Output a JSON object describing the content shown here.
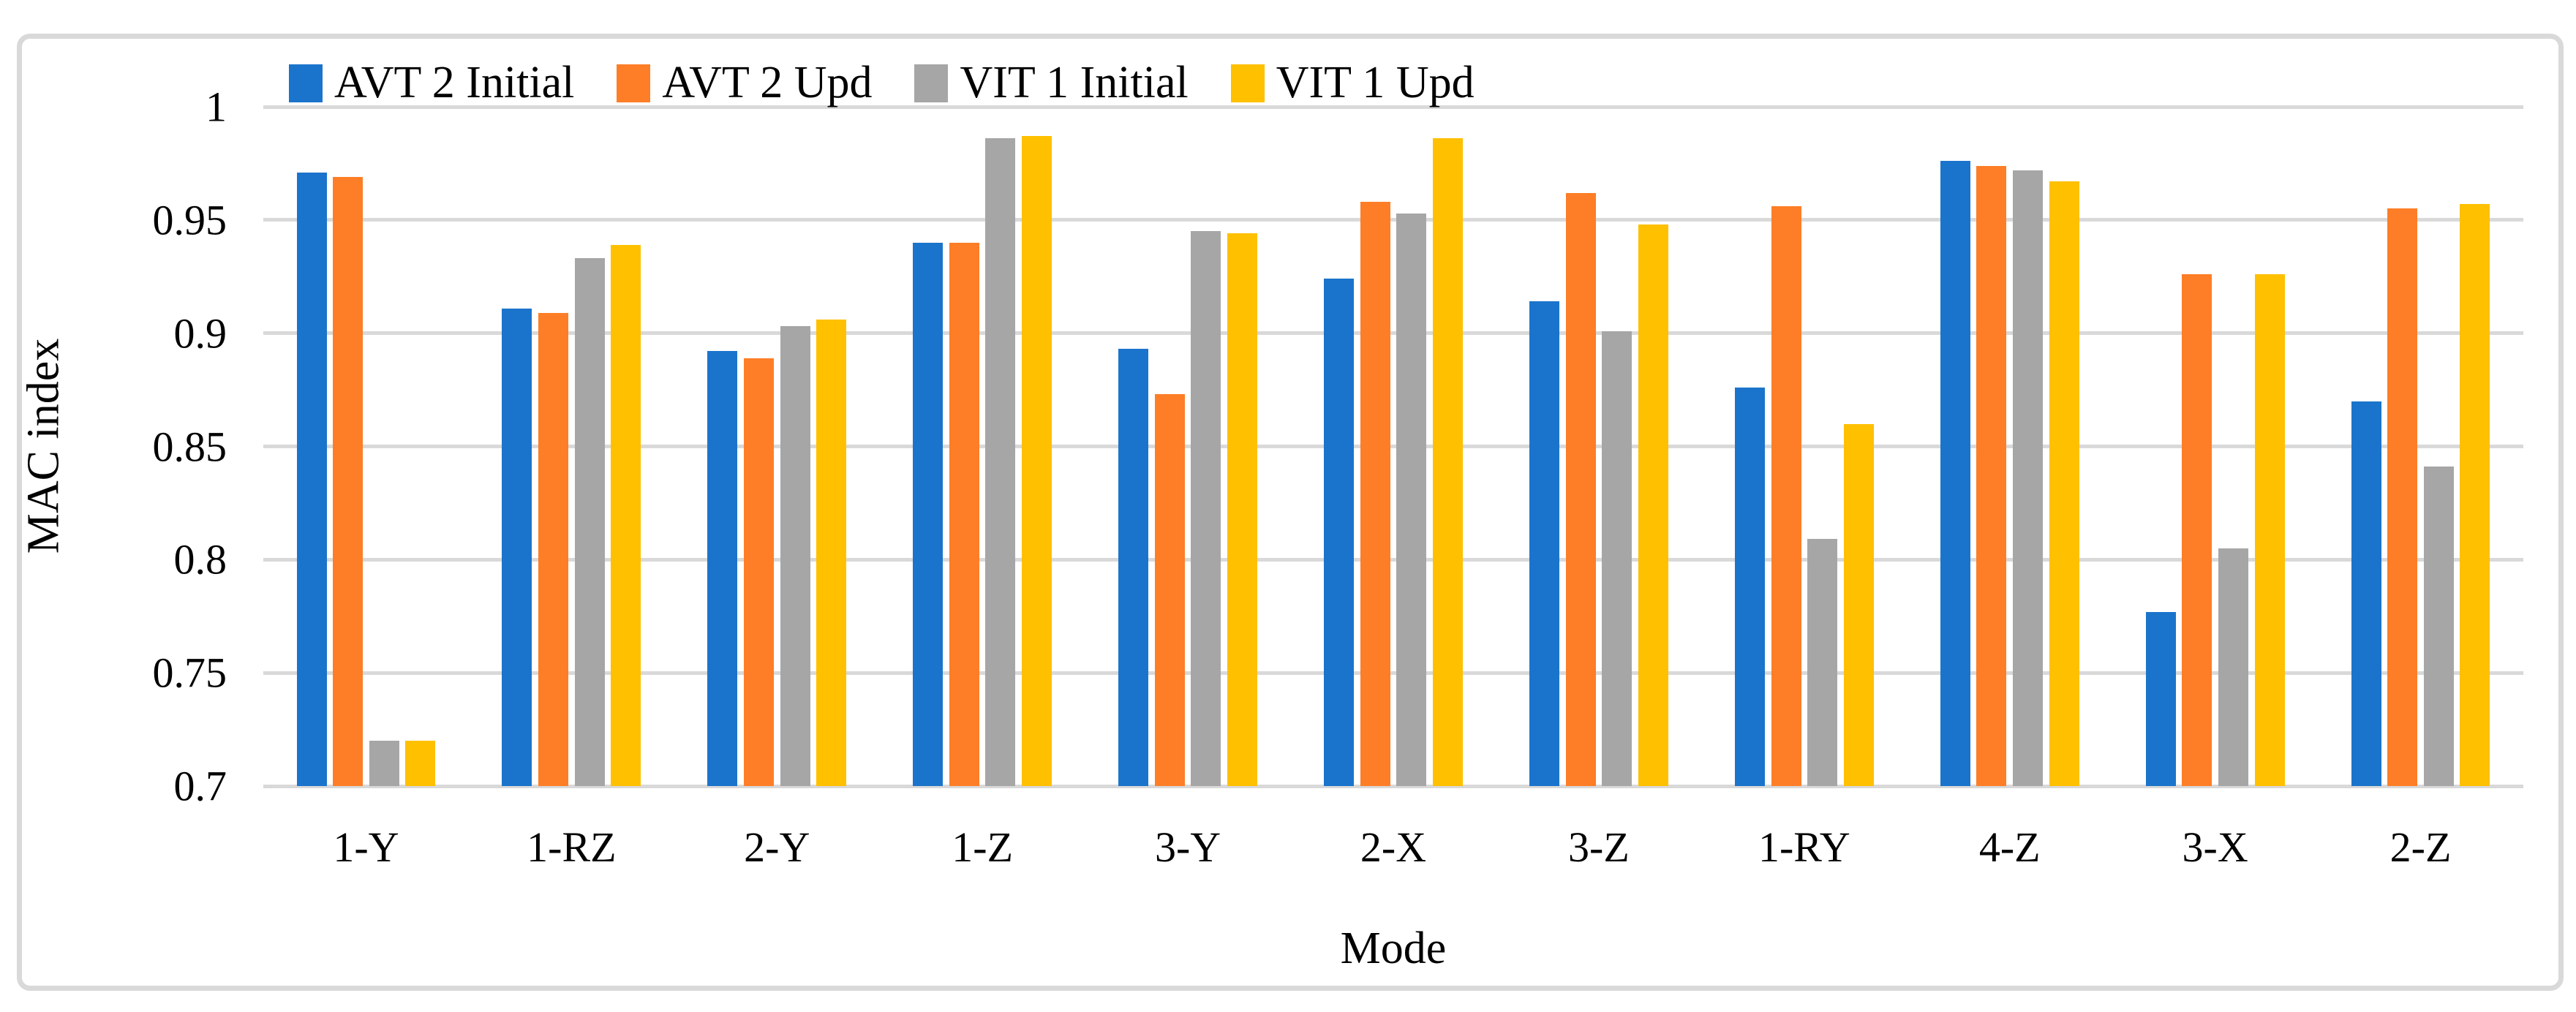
{
  "chart_data": {
    "type": "bar",
    "title": "",
    "xlabel": "Mode",
    "ylabel": "MAC index",
    "ylim": [
      0.7,
      1.0
    ],
    "ytick_step": 0.05,
    "ytick_labels": [
      "1",
      "0.95",
      "0.9",
      "0.85",
      "0.8",
      "0.75",
      "0.7"
    ],
    "grid": true,
    "legend_position": "top",
    "categories": [
      "1-Y",
      "1-RZ",
      "2-Y",
      "1-Z",
      "3-Y",
      "2-X",
      "3-Z",
      "1-RY",
      "4-Z",
      "3-X",
      "2-Z"
    ],
    "series": [
      {
        "name": "AVT 2 Initial",
        "color": "#1b74cb",
        "values": [
          0.971,
          0.911,
          0.892,
          0.94,
          0.893,
          0.924,
          0.914,
          0.876,
          0.976,
          0.777,
          0.87
        ]
      },
      {
        "name": "AVT 2 Upd",
        "color": "#fd7e27",
        "values": [
          0.969,
          0.909,
          0.889,
          0.94,
          0.873,
          0.958,
          0.962,
          0.956,
          0.974,
          0.926,
          0.955
        ]
      },
      {
        "name": "VIT 1 Initial",
        "color": "#a6a6a6",
        "values": [
          0.72,
          0.933,
          0.903,
          0.986,
          0.945,
          0.953,
          0.901,
          0.809,
          0.972,
          0.805,
          0.841
        ]
      },
      {
        "name": "VIT 1 Upd",
        "color": "#ffc000",
        "values": [
          0.72,
          0.939,
          0.906,
          0.987,
          0.944,
          0.986,
          0.948,
          0.86,
          0.967,
          0.926,
          0.957
        ]
      }
    ],
    "colors": {
      "gridline": "#d9d9d9",
      "frame_border": "#d9d9d9",
      "text": "#000000",
      "background": "#ffffff"
    }
  }
}
